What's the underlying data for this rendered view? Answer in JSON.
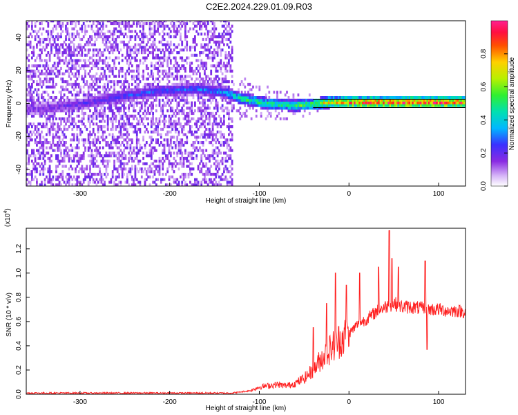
{
  "title": "C2E2.2024.229.01.09.R03",
  "chart_data": [
    {
      "type": "heatmap",
      "xlabel": "Height of straight line (km)",
      "ylabel": "Frequency (Hz)",
      "xlim": [
        -360,
        130
      ],
      "ylim": [
        -50,
        50
      ],
      "x_ticks": [
        -300,
        -200,
        -100,
        0,
        100
      ],
      "y_ticks": [
        -40,
        -20,
        0,
        20,
        40
      ],
      "colorbar": {
        "label": "Normalized spectral amplitude",
        "range": [
          0.0,
          1.0
        ],
        "ticks": [
          0.0,
          0.2,
          0.4,
          0.6,
          0.8
        ],
        "colormap": "rainbow (white-violet-blue-cyan-green-yellow-red-magenta)"
      },
      "reference_lines_hz": [
        2.5,
        -2.5
      ],
      "noise_floor_region_km": [
        -360,
        -130
      ],
      "signal_ridge": {
        "x": [
          -360,
          -300,
          -250,
          -210,
          -170,
          -140,
          -120,
          -90,
          -60,
          -40,
          -20,
          0,
          40,
          80,
          130
        ],
        "y": [
          -5,
          -1,
          4,
          7,
          8,
          6,
          2,
          -1,
          -2,
          -1,
          0,
          0,
          0,
          0,
          0
        ],
        "amplitude": [
          0.15,
          0.2,
          0.25,
          0.28,
          0.3,
          0.35,
          0.5,
          0.5,
          0.55,
          0.6,
          0.75,
          0.85,
          0.9,
          0.9,
          0.9
        ]
      }
    },
    {
      "type": "line",
      "xlabel": "Height of straight line (km)",
      "ylabel": "SNR (10 * v/v)",
      "y_scale_note": "(x10",
      "y_scale_exp": "4",
      "xlim": [
        -360,
        130
      ],
      "ylim": [
        0,
        1.37
      ],
      "x_ticks": [
        -300,
        -200,
        -100,
        0,
        100
      ],
      "y_ticks": [
        0.0,
        0.2,
        0.4,
        0.6,
        0.8,
        1.0,
        1.2
      ],
      "color": "#ff2020",
      "series": [
        {
          "x": [
            -360,
            -300,
            -200,
            -130,
            -110,
            -100,
            -90,
            -80,
            -70,
            -60,
            -50,
            -40,
            -30,
            -20,
            -10,
            0,
            10,
            20,
            30,
            40,
            50,
            60,
            70,
            80,
            90,
            100,
            110,
            120,
            130
          ],
          "y": [
            0.01,
            0.01,
            0.01,
            0.01,
            0.03,
            0.06,
            0.07,
            0.08,
            0.07,
            0.09,
            0.13,
            0.2,
            0.3,
            0.38,
            0.45,
            0.5,
            0.58,
            0.62,
            0.68,
            0.72,
            0.75,
            0.72,
            0.72,
            0.71,
            0.7,
            0.7,
            0.69,
            0.69,
            0.68
          ],
          "spikes": [
            [
              -15,
              1.0
            ],
            [
              -3,
              0.9
            ],
            [
              12,
              1.0
            ],
            [
              33,
              1.05
            ],
            [
              45,
              1.35
            ],
            [
              48,
              1.12
            ],
            [
              55,
              1.05
            ],
            [
              85,
              1.1
            ],
            [
              87,
              0.37
            ],
            [
              -25,
              0.75
            ],
            [
              -40,
              0.55
            ]
          ]
        }
      ]
    }
  ]
}
